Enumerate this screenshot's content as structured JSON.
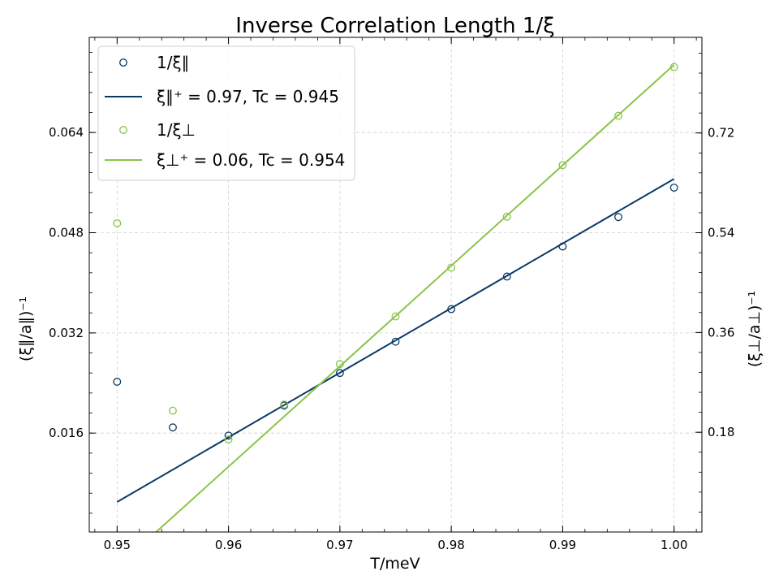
{
  "chart_data": {
    "type": "scatter",
    "title": "Inverse Correlation Length 1/ξ",
    "xlabel": "T/meV",
    "ylabel_left": "(ξ∥/a∥)⁻¹",
    "ylabel_right": "(ξ⊥/a⊥)⁻¹",
    "xlim": [
      0.9475,
      1.0025
    ],
    "ylim_left": [
      0.0002,
      0.0792
    ],
    "ylim_right": [
      0.0,
      0.8925
    ],
    "x_ticks": [
      "0.95",
      "0.96",
      "0.97",
      "0.98",
      "0.99",
      "1.00"
    ],
    "y_ticks_left": [
      "0.016",
      "0.032",
      "0.048",
      "0.064"
    ],
    "y_ticks_right": [
      "0.18",
      "0.36",
      "0.54",
      "0.72"
    ],
    "grid": true,
    "legend_position": "upper-left",
    "series": [
      {
        "name": "1/ξ∥",
        "kind": "markers",
        "axis": "left",
        "color": "#0b3a66",
        "x": [
          0.95,
          0.955,
          0.96,
          0.965,
          0.97,
          0.975,
          0.98,
          0.985,
          0.99,
          0.995,
          1.0
        ],
        "y": [
          0.0242,
          0.0169,
          0.0156,
          0.0204,
          0.0256,
          0.0306,
          0.0358,
          0.041,
          0.0458,
          0.0505,
          0.0552
        ]
      },
      {
        "name": "ξ∥⁺ = 0.97, Tc = 0.945",
        "kind": "line",
        "axis": "left",
        "color": "#0b3a66",
        "x": [
          0.95,
          1.0
        ],
        "y": [
          0.005,
          0.0566
        ]
      },
      {
        "name": "1/ξ⊥",
        "kind": "markers",
        "axis": "right",
        "color": "#8bc34a",
        "x": [
          0.95,
          0.955,
          0.96,
          0.965,
          0.97,
          0.975,
          0.98,
          0.985,
          0.99,
          0.995,
          1.0
        ],
        "y": [
          0.557,
          0.219,
          0.167,
          0.23,
          0.303,
          0.389,
          0.477,
          0.569,
          0.662,
          0.751,
          0.839
        ]
      },
      {
        "name": "ξ⊥⁺ = 0.06, Tc = 0.954",
        "kind": "line",
        "axis": "right",
        "color": "#8bc34a",
        "x": [
          0.9535,
          1.0
        ],
        "y": [
          0.0,
          0.843
        ]
      }
    ]
  }
}
